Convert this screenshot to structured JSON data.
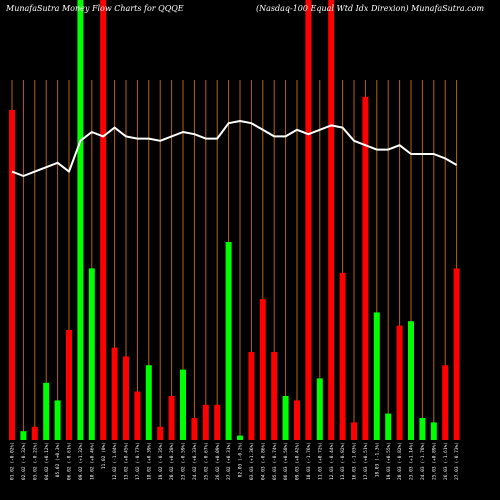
{
  "header": {
    "left_title": "MunafaSutra  Money Flow  Charts for QQQE",
    "right_title": "(Nasdaq-100  Equal Wtd Idx Direxion) MunafaSutra.com"
  },
  "colors": {
    "background": "#000000",
    "grid": "#b8650a",
    "up": "#00ff00",
    "down": "#ff0000",
    "line": "#ffffff"
  },
  "chart_data": {
    "type": "bar",
    "title": "MunafaSutra  Money Flow  Charts for QQQE",
    "subtitle": "(Nasdaq-100  Equal Wtd Idx Direxion) MunafaSutra.com",
    "grid": true,
    "ylim": [
      0,
      100
    ],
    "categories": [
      "01.02 (-0.02%)",
      "02.02 (-0.32%)",
      "03.02 (-0.22%)",
      "04.02 (+0.12%)",
      "05.02 (+0.3%)",
      "06.02 (-0.61%)",
      "09.02 (+1.32%)",
      "10.02 (+0.46%)",
      "11.02 (0%)",
      "12.02 (-1.04%)",
      "13.02 (+0.45%)",
      "17.02 (-0.77%)",
      "18.02 (+0.39%)",
      "19.02 (-0.35%)",
      "20.02 (+0.28%)",
      "23.02 (-0.59%)",
      "24.02 (+0.33%)",
      "25.02 (-0.67%)",
      "26.02 (+0.09%)",
      "27.02 (+0.31%)",
      "02.03 (-0.2%)",
      "03.03 (+1.36%)",
      "04.03 (-0.86%)",
      "05.03 (-0.74%)",
      "06.03 (+0.58%)",
      "09.03 (+0.42%)",
      "10.03 (-1.76%)",
      "11.03 (+0.72%)",
      "12.03 (-0.44%)",
      "13.03 (-0.92%)",
      "16.03 (-1.03%)",
      "17.03 (+0.51%)",
      "18.03 (-1.3%)",
      "19.03 (+0.55%)",
      "20.03 (-0.82%)",
      "23.03 (+1.14%)",
      "24.03 (-1.78%)",
      "25.03 (+0.89%)",
      "26.03 (-1.61%)",
      "27.03 (-0.73%)"
    ],
    "series": [
      {
        "direction": [
          "down",
          "up",
          "down",
          "up",
          "up",
          "down",
          "up",
          "up",
          "down",
          "down",
          "down",
          "down",
          "up",
          "down",
          "down",
          "up",
          "down",
          "down",
          "down",
          "up",
          "up",
          "down",
          "down",
          "down",
          "up",
          "down",
          "down",
          "up",
          "down",
          "down",
          "down",
          "down",
          "up",
          "up",
          "down",
          "up",
          "up",
          "up",
          "down",
          "down"
        ],
        "values": [
          75,
          2,
          3,
          13,
          9,
          25,
          100,
          39,
          100,
          21,
          19,
          11,
          17,
          3,
          10,
          16,
          5,
          8,
          8,
          45,
          1,
          20,
          32,
          20,
          10,
          9,
          100,
          14,
          100,
          38,
          4,
          78,
          29,
          6,
          26,
          27,
          5,
          4,
          17,
          39
        ]
      },
      {
        "values": [
          61,
          60,
          61,
          62,
          63,
          61,
          68,
          70,
          69,
          71,
          69,
          68.5,
          68.5,
          68,
          69,
          70,
          69.5,
          68.5,
          68.5,
          72,
          72.5,
          72,
          70.5,
          69,
          69,
          70.5,
          69.5,
          70.5,
          71.5,
          71,
          68,
          67,
          66,
          66,
          67,
          65,
          65,
          65,
          64,
          62.5
        ]
      }
    ]
  }
}
